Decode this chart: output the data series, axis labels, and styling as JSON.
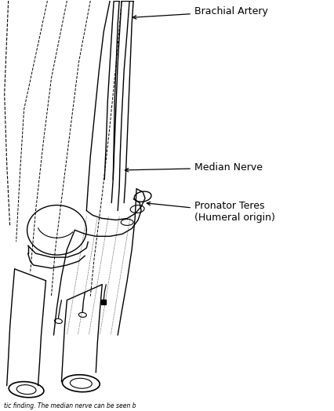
{
  "background_color": "#ffffff",
  "line_color": "#000000",
  "labels": {
    "brachial_artery": "Brachial Artery",
    "median_nerve": "Median Nerve",
    "pronator_teres": "Pronator Teres\n(Humeral origin)"
  },
  "figsize": [
    4.26,
    5.24
  ],
  "dpi": 100
}
